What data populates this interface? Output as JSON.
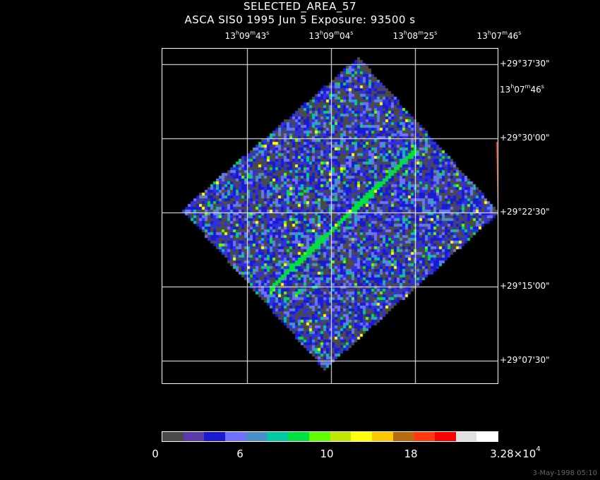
{
  "title": "SELECTED_AREA_57",
  "subtitle": "ASCA SIS0   1995 Jun  5    Exposure: 93500 s",
  "ra_ticks": [
    {
      "h": "13",
      "m": "09",
      "s": "43"
    },
    {
      "h": "13",
      "m": "09",
      "s": "04"
    },
    {
      "h": "13",
      "m": "08",
      "s": "25"
    },
    {
      "h": "13",
      "m": "07",
      "s": "46"
    }
  ],
  "side_ra": {
    "h": "13",
    "m": "07",
    "s": "46"
  },
  "dec_ticks": [
    "+29°37'30\"",
    "+29°30'00\"",
    "+29°22'30\"",
    "+29°15'00\"",
    "+29°07'30\""
  ],
  "colorbar": {
    "colors": [
      "#4a4a4a",
      "#5a3aa8",
      "#1a1ad0",
      "#7070ff",
      "#4a90c8",
      "#00c8a0",
      "#00e040",
      "#60ff00",
      "#c0e800",
      "#ffff00",
      "#ffc800",
      "#b86a10",
      "#ff3a10",
      "#ff0000",
      "#e0e0e0",
      "#ffffff"
    ],
    "labels": [
      "0",
      "6",
      "10",
      "18"
    ],
    "max_label_mantissa": "3.28×10",
    "max_label_exp": "4"
  },
  "timestamp": "3-May-1998 05:10"
}
